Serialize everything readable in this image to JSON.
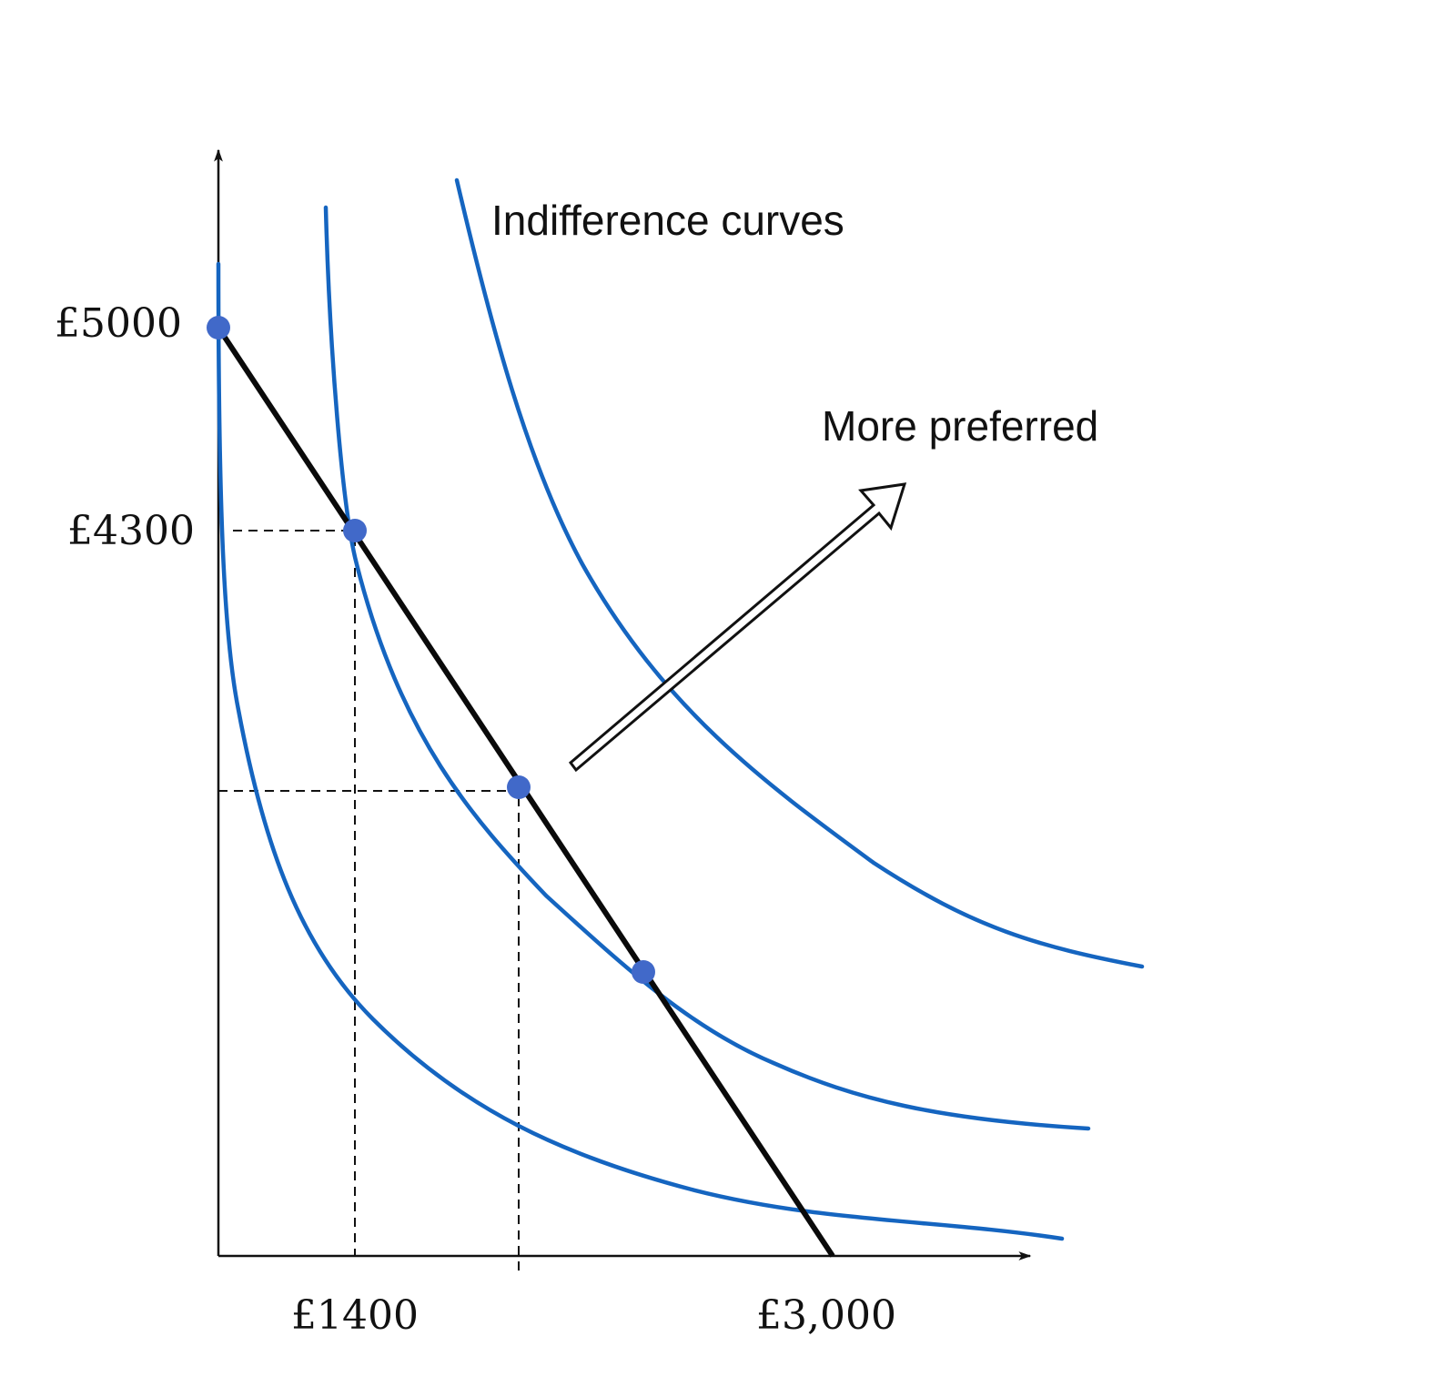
{
  "colors": {
    "curve": "#1565c0",
    "point": "#4169c9",
    "budget": "#0a0a0a",
    "axis": "#111111"
  },
  "labels": {
    "y_high": "£5000",
    "y_mid": "£4300",
    "x_mid": "£1400",
    "x_high": "£3,000",
    "curves": "Indifference curves",
    "preference": "More preferred"
  }
}
